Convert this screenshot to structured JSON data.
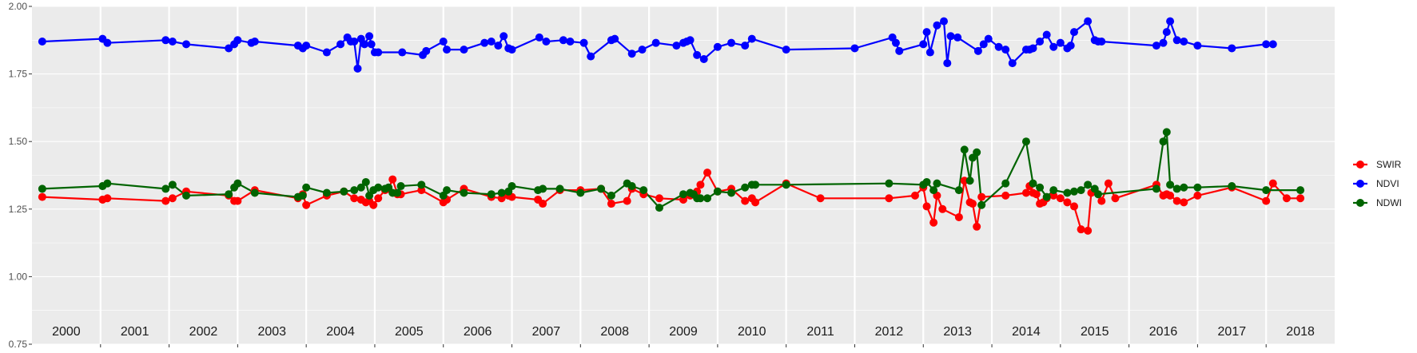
{
  "chart_data": {
    "type": "line",
    "title": "",
    "xlabel": "",
    "ylabel": "",
    "xlim": [
      2000.0,
      2019.0
    ],
    "ylim": [
      0.75,
      2.0
    ],
    "yticks": [
      "0.75",
      "1.00",
      "1.25",
      "1.50",
      "1.75",
      "2.00"
    ],
    "year_labels": [
      "2000",
      "2001",
      "2002",
      "2003",
      "2004",
      "2005",
      "2006",
      "2007",
      "2008",
      "2009",
      "2010",
      "2011",
      "2012",
      "2013",
      "2014",
      "2015",
      "2016",
      "2017",
      "2018"
    ],
    "grid": true,
    "legend_position": "right",
    "colors": {
      "panel": "#ebebeb",
      "grid": "#ffffff"
    },
    "series": [
      {
        "name": "SWIR",
        "color": "#ff0000",
        "x": [
          2000.15,
          2001.03,
          2001.1,
          2001.95,
          2002.05,
          2002.25,
          2002.87,
          2002.95,
          2003.0,
          2003.25,
          2003.88,
          2003.95,
          2004.0,
          2004.3,
          2004.55,
          2004.7,
          2004.8,
          2004.87,
          2004.92,
          2004.98,
          2005.05,
          2005.15,
          2005.2,
          2005.26,
          2005.33,
          2005.38,
          2005.68,
          2006.0,
          2006.05,
          2006.3,
          2006.7,
          2006.85,
          2006.95,
          2007.0,
          2007.38,
          2007.45,
          2007.7,
          2008.0,
          2008.3,
          2008.45,
          2008.68,
          2008.75,
          2008.92,
          2009.15,
          2009.5,
          2009.6,
          2009.65,
          2009.7,
          2009.75,
          2009.85,
          2010.0,
          2010.2,
          2010.4,
          2010.5,
          2010.55,
          2011.0,
          2011.5,
          2012.5,
          2012.88,
          2013.0,
          2013.05,
          2013.15,
          2013.2,
          2013.28,
          2013.52,
          2013.6,
          2013.68,
          2013.72,
          2013.78,
          2013.85,
          2014.2,
          2014.5,
          2014.55,
          2014.6,
          2014.65,
          2014.7,
          2014.75,
          2014.8,
          2014.9,
          2015.0,
          2015.1,
          2015.2,
          2015.3,
          2015.4,
          2015.45,
          2015.5,
          2015.6,
          2015.7,
          2015.8,
          2016.4,
          2016.5,
          2016.55,
          2016.6,
          2016.7,
          2016.8,
          2017.0,
          2017.5,
          2018.0,
          2018.1,
          2018.3,
          2018.5
        ],
        "y": [
          1.295,
          1.285,
          1.29,
          1.28,
          1.29,
          1.315,
          1.3,
          1.28,
          1.28,
          1.32,
          1.29,
          1.305,
          1.265,
          1.3,
          1.315,
          1.29,
          1.285,
          1.275,
          1.28,
          1.265,
          1.29,
          1.32,
          1.325,
          1.36,
          1.305,
          1.305,
          1.32,
          1.275,
          1.285,
          1.325,
          1.295,
          1.29,
          1.3,
          1.295,
          1.285,
          1.27,
          1.32,
          1.32,
          1.325,
          1.27,
          1.28,
          1.325,
          1.305,
          1.29,
          1.285,
          1.3,
          1.305,
          1.315,
          1.34,
          1.385,
          1.315,
          1.325,
          1.28,
          1.29,
          1.275,
          1.345,
          1.29,
          1.29,
          1.3,
          1.33,
          1.26,
          1.2,
          1.3,
          1.25,
          1.22,
          1.355,
          1.275,
          1.27,
          1.185,
          1.295,
          1.3,
          1.31,
          1.335,
          1.31,
          1.305,
          1.27,
          1.275,
          1.29,
          1.3,
          1.29,
          1.275,
          1.26,
          1.175,
          1.17,
          1.31,
          1.32,
          1.28,
          1.345,
          1.29,
          1.34,
          1.3,
          1.305,
          1.3,
          1.28,
          1.275,
          1.3,
          1.33,
          1.28,
          1.345,
          1.29,
          1.29
        ],
        "marker": true
      },
      {
        "name": "NDVI",
        "color": "#0000ff",
        "x": [
          2000.15,
          2001.03,
          2001.1,
          2001.95,
          2002.05,
          2002.25,
          2002.87,
          2002.95,
          2003.0,
          2003.2,
          2003.25,
          2003.88,
          2003.95,
          2004.0,
          2004.3,
          2004.5,
          2004.6,
          2004.65,
          2004.7,
          2004.75,
          2004.8,
          2004.85,
          2004.92,
          2004.95,
          2005.0,
          2005.05,
          2005.4,
          2005.7,
          2005.75,
          2006.0,
          2006.05,
          2006.3,
          2006.6,
          2006.7,
          2006.8,
          2006.88,
          2006.95,
          2007.0,
          2007.4,
          2007.5,
          2007.75,
          2007.85,
          2008.05,
          2008.15,
          2008.45,
          2008.5,
          2008.75,
          2008.9,
          2009.1,
          2009.4,
          2009.5,
          2009.55,
          2009.6,
          2009.7,
          2009.8,
          2010.0,
          2010.2,
          2010.4,
          2010.5,
          2011.0,
          2012.0,
          2012.55,
          2012.6,
          2012.65,
          2013.0,
          2013.05,
          2013.1,
          2013.2,
          2013.3,
          2013.35,
          2013.4,
          2013.5,
          2013.8,
          2013.88,
          2013.95,
          2014.1,
          2014.2,
          2014.3,
          2014.5,
          2014.55,
          2014.6,
          2014.7,
          2014.8,
          2014.9,
          2015.0,
          2015.1,
          2015.15,
          2015.2,
          2015.4,
          2015.5,
          2015.55,
          2015.6,
          2016.4,
          2016.5,
          2016.55,
          2016.6,
          2016.7,
          2016.8,
          2017.0,
          2017.5,
          2018.0,
          2018.1
        ],
        "y": [
          1.87,
          1.88,
          1.865,
          1.875,
          1.87,
          1.86,
          1.845,
          1.86,
          1.875,
          1.865,
          1.87,
          1.855,
          1.845,
          1.855,
          1.83,
          1.86,
          1.885,
          1.87,
          1.87,
          1.77,
          1.88,
          1.86,
          1.89,
          1.86,
          1.83,
          1.83,
          1.83,
          1.82,
          1.835,
          1.87,
          1.84,
          1.84,
          1.865,
          1.87,
          1.855,
          1.89,
          1.845,
          1.84,
          1.885,
          1.87,
          1.875,
          1.87,
          1.865,
          1.815,
          1.875,
          1.88,
          1.825,
          1.84,
          1.865,
          1.855,
          1.865,
          1.87,
          1.875,
          1.82,
          1.805,
          1.85,
          1.865,
          1.855,
          1.88,
          1.84,
          1.845,
          1.885,
          1.865,
          1.835,
          1.86,
          1.905,
          1.83,
          1.93,
          1.945,
          1.79,
          1.89,
          1.885,
          1.835,
          1.86,
          1.88,
          1.85,
          1.84,
          1.79,
          1.84,
          1.84,
          1.845,
          1.87,
          1.895,
          1.85,
          1.865,
          1.845,
          1.855,
          1.905,
          1.945,
          1.875,
          1.87,
          1.87,
          1.855,
          1.865,
          1.905,
          1.945,
          1.875,
          1.87,
          1.855,
          1.845,
          1.86,
          1.86
        ],
        "marker": true
      },
      {
        "name": "NDWI",
        "color": "#006400",
        "x": [
          2000.15,
          2001.03,
          2001.1,
          2001.95,
          2002.05,
          2002.25,
          2002.87,
          2002.95,
          2003.0,
          2003.25,
          2003.88,
          2003.95,
          2004.0,
          2004.3,
          2004.55,
          2004.7,
          2004.8,
          2004.87,
          2004.92,
          2004.98,
          2005.05,
          2005.15,
          2005.2,
          2005.26,
          2005.33,
          2005.38,
          2005.68,
          2006.0,
          2006.05,
          2006.3,
          2006.7,
          2006.85,
          2006.95,
          2007.0,
          2007.38,
          2007.45,
          2007.7,
          2008.0,
          2008.3,
          2008.45,
          2008.68,
          2008.75,
          2008.92,
          2009.15,
          2009.5,
          2009.6,
          2009.65,
          2009.7,
          2009.75,
          2009.85,
          2010.0,
          2010.2,
          2010.4,
          2010.5,
          2010.55,
          2011.0,
          2012.5,
          2013.0,
          2013.05,
          2013.15,
          2013.2,
          2013.52,
          2013.6,
          2013.68,
          2013.72,
          2013.78,
          2013.85,
          2014.2,
          2014.5,
          2014.6,
          2014.7,
          2014.8,
          2014.9,
          2015.1,
          2015.2,
          2015.3,
          2015.4,
          2015.5,
          2015.55,
          2016.4,
          2016.5,
          2016.55,
          2016.6,
          2016.7,
          2016.8,
          2017.0,
          2017.5,
          2018.0,
          2018.5
        ],
        "y": [
          1.325,
          1.335,
          1.345,
          1.325,
          1.34,
          1.3,
          1.305,
          1.33,
          1.345,
          1.31,
          1.295,
          1.3,
          1.33,
          1.31,
          1.315,
          1.32,
          1.33,
          1.35,
          1.3,
          1.32,
          1.33,
          1.325,
          1.33,
          1.31,
          1.31,
          1.335,
          1.34,
          1.3,
          1.32,
          1.31,
          1.305,
          1.31,
          1.315,
          1.335,
          1.32,
          1.325,
          1.325,
          1.31,
          1.325,
          1.3,
          1.345,
          1.335,
          1.32,
          1.255,
          1.305,
          1.31,
          1.305,
          1.29,
          1.29,
          1.29,
          1.315,
          1.31,
          1.33,
          1.34,
          1.34,
          1.34,
          1.345,
          1.34,
          1.35,
          1.32,
          1.345,
          1.32,
          1.47,
          1.355,
          1.44,
          1.46,
          1.265,
          1.345,
          1.5,
          1.345,
          1.33,
          1.295,
          1.32,
          1.31,
          1.315,
          1.32,
          1.34,
          1.325,
          1.305,
          1.325,
          1.5,
          1.535,
          1.34,
          1.325,
          1.33,
          1.33,
          1.335,
          1.32,
          1.32
        ],
        "marker": true
      }
    ]
  }
}
